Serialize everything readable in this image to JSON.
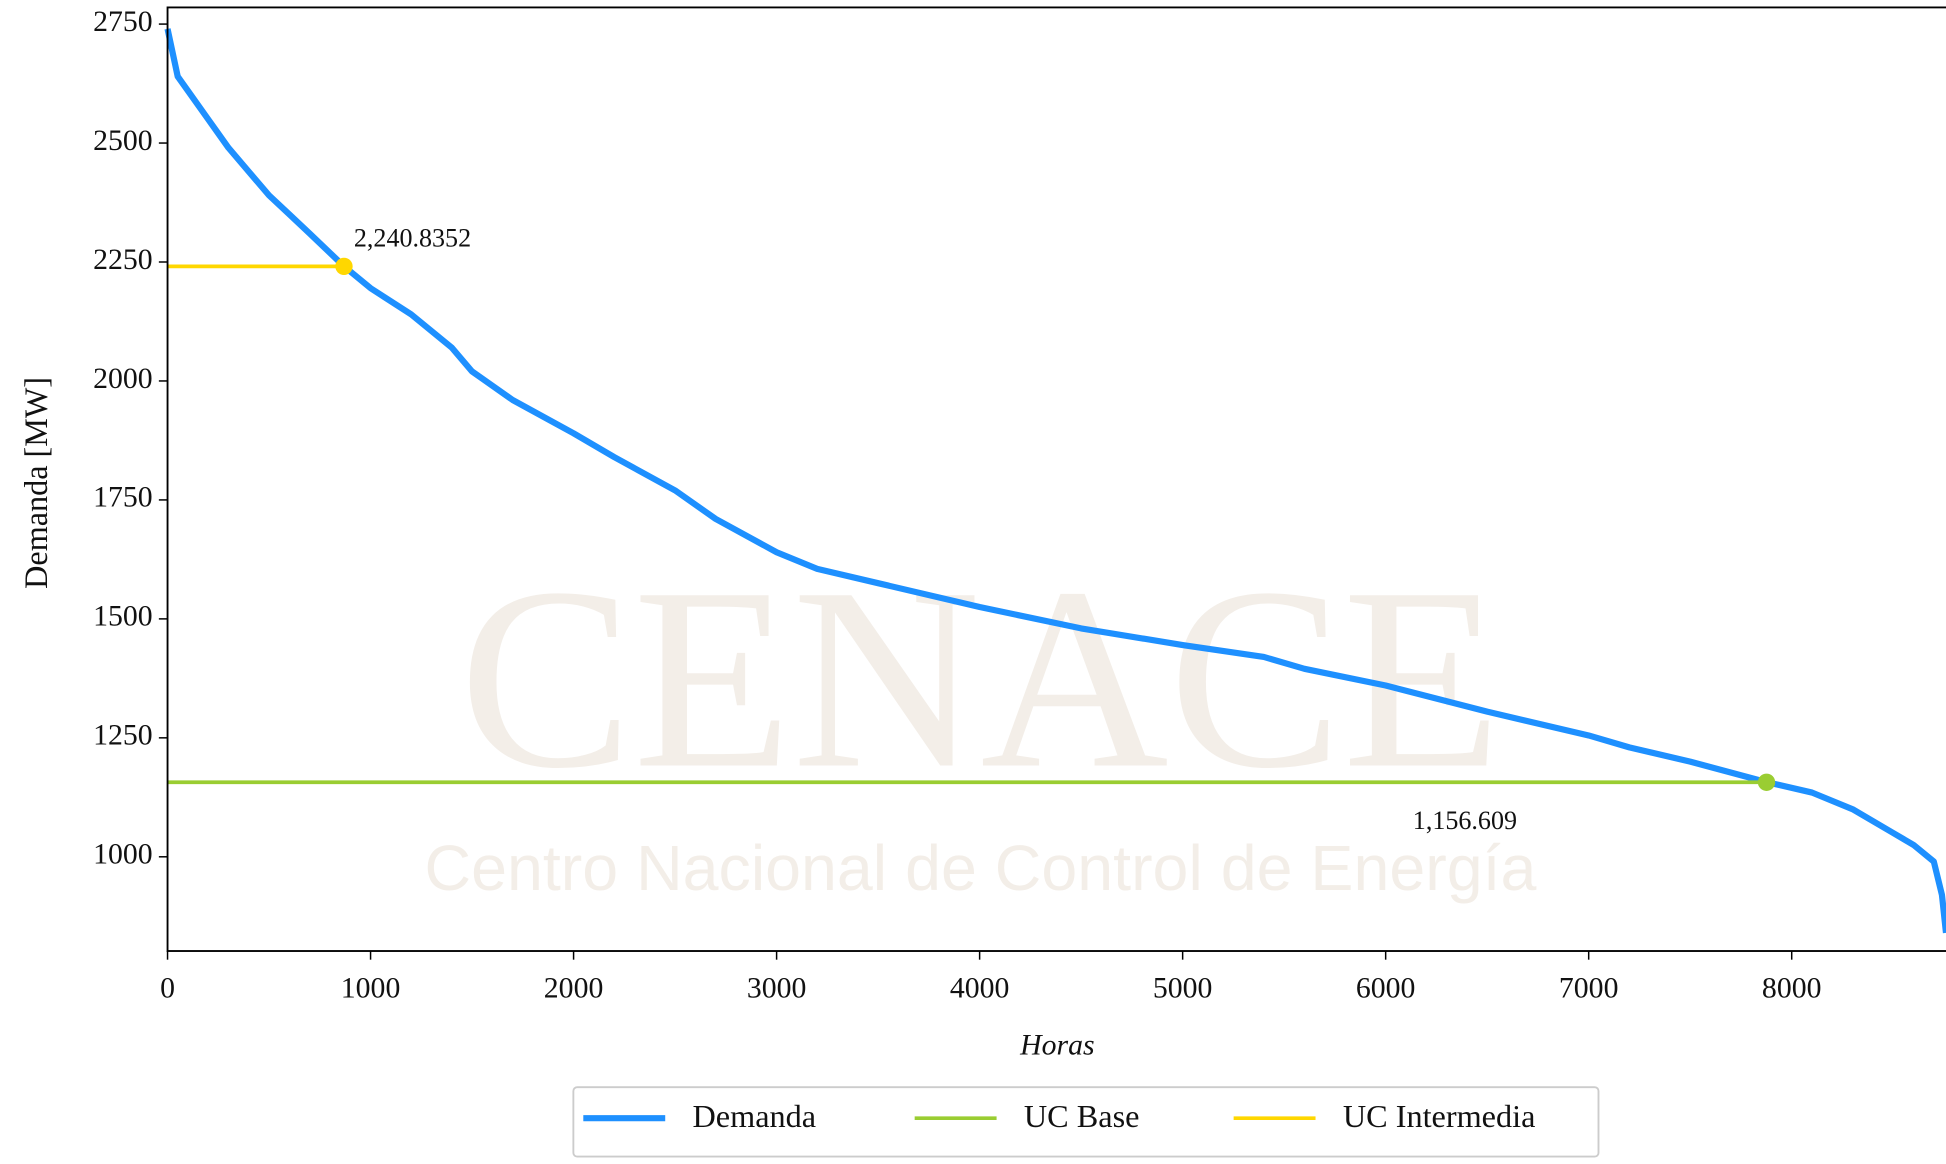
{
  "chart_data": {
    "type": "line",
    "watermark": [
      "CENACE",
      "Centro Nacional de Control de Energía"
    ],
    "xlabel": "Horas",
    "ylabel": "Demanda [MW]",
    "xlim": [
      0,
      8760
    ],
    "ylim": [
      802,
      2785
    ],
    "xticks": [
      0,
      1000,
      2000,
      3000,
      4000,
      5000,
      6000,
      7000,
      8000
    ],
    "yticks": [
      1000,
      1250,
      1500,
      1750,
      2000,
      2250,
      2500,
      2750
    ],
    "legend": "bottom",
    "series": [
      {
        "name": "Demanda",
        "color": "#1e90ff",
        "x": [
          0,
          50,
          100,
          200,
          300,
          400,
          500,
          600,
          700,
          869,
          1000,
          1200,
          1400,
          1500,
          1700,
          2000,
          2200,
          2500,
          2700,
          3000,
          3200,
          3500,
          4000,
          4500,
          5000,
          5400,
          5600,
          6000,
          6500,
          7000,
          7200,
          7500,
          7876,
          8100,
          8300,
          8500,
          8600,
          8700,
          8740,
          8760
        ],
        "values": [
          2740,
          2640,
          2610,
          2550,
          2490,
          2440,
          2390,
          2350,
          2310,
          2241,
          2195,
          2140,
          2070,
          2020,
          1960,
          1890,
          1840,
          1770,
          1710,
          1640,
          1605,
          1575,
          1525,
          1480,
          1445,
          1420,
          1395,
          1360,
          1305,
          1255,
          1230,
          1200,
          1157,
          1135,
          1100,
          1050,
          1025,
          990,
          920,
          840
        ]
      },
      {
        "name": "UC Base",
        "color": "#9acd32",
        "x": [
          7876
        ],
        "values": [
          1156.609
        ],
        "value_labels": [
          "1,156.609"
        ]
      },
      {
        "name": "UC Intermedia",
        "color": "#ffd700",
        "x": [
          869
        ],
        "values": [
          2240.8352
        ],
        "value_labels": [
          "2,240.8352"
        ]
      }
    ]
  }
}
